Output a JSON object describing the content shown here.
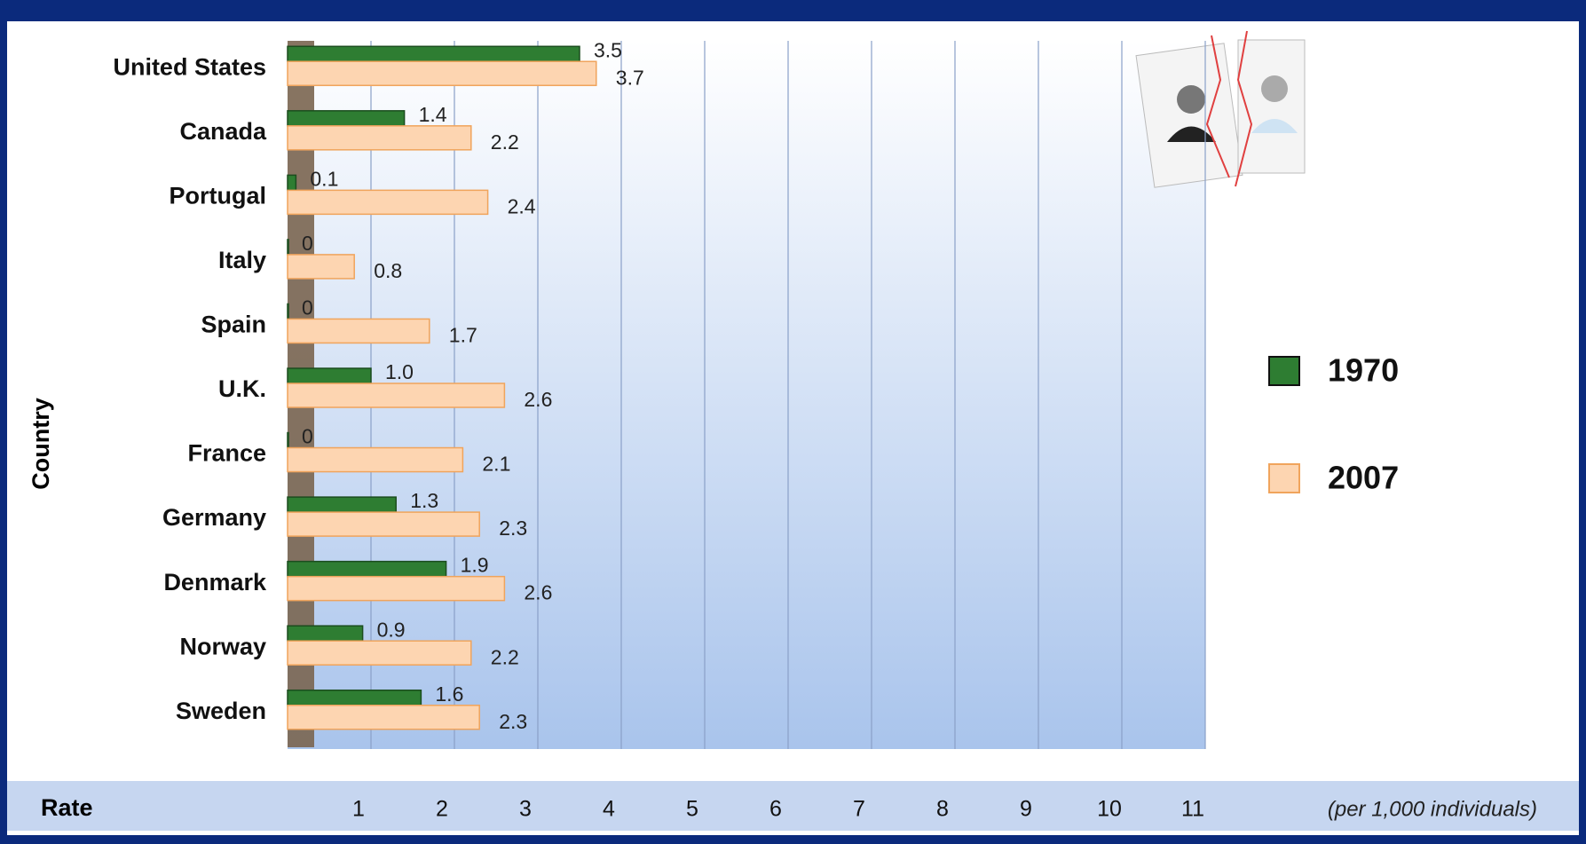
{
  "chart_data": {
    "type": "bar",
    "orientation": "horizontal",
    "y_label": "Country",
    "x_label": "Rate",
    "x_unit_note": "(per 1,000 individuals)",
    "categories": [
      "United States",
      "Canada",
      "Portugal",
      "Italy",
      "Spain",
      "U.K.",
      "France",
      "Germany",
      "Denmark",
      "Norway",
      "Sweden"
    ],
    "series": [
      {
        "name": "1970",
        "color": "#2e7d32",
        "values": [
          3.5,
          1.4,
          0.1,
          0,
          0,
          1.0,
          0,
          1.3,
          1.9,
          0.9,
          1.6
        ],
        "value_labels": [
          "3.5",
          "1.4",
          "0.1",
          "0",
          "0",
          "1.0",
          "0",
          "1.3",
          "1.9",
          "0.9",
          "1.6"
        ]
      },
      {
        "name": "2007",
        "color": "#fdd5b1",
        "values": [
          3.7,
          2.2,
          2.4,
          0.8,
          1.7,
          2.6,
          2.1,
          2.3,
          2.6,
          2.2,
          2.3
        ]
      }
    ],
    "xlim": [
      0,
      11
    ],
    "xticks": [
      1,
      2,
      3,
      4,
      5,
      6,
      7,
      8,
      9,
      10,
      11
    ],
    "grid": true,
    "legend": "right"
  }
}
